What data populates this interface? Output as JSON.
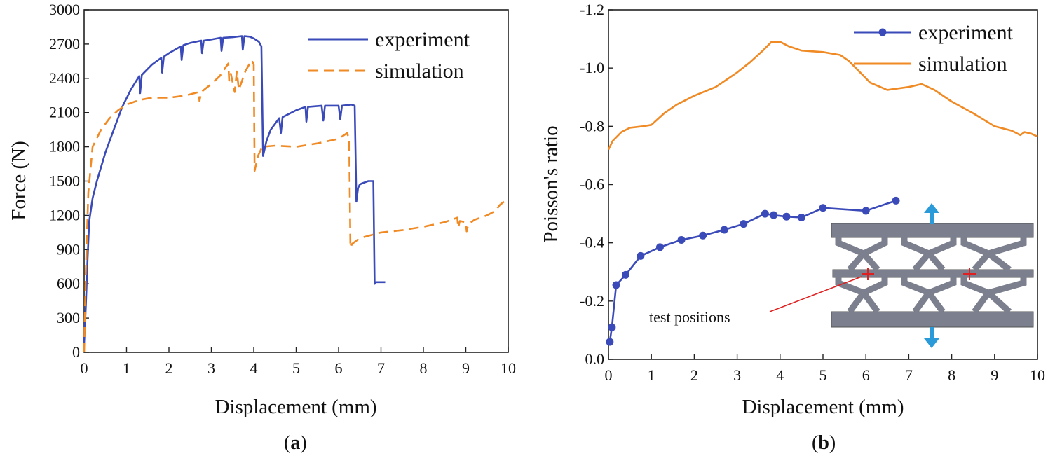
{
  "colors": {
    "experiment": "#3a4ab8",
    "simulation": "#f08a24",
    "structure": "#7c7f8e",
    "arrow": "#2a9ad8",
    "marker": "#e02020"
  },
  "chart_data": [
    {
      "type": "line",
      "panel_label": "a",
      "xlabel": "Displacement (mm)",
      "ylabel": "Force (N)",
      "xlim": [
        0,
        10
      ],
      "ylim": [
        0,
        3000
      ],
      "xticks": [
        "0",
        "1",
        "2",
        "3",
        "4",
        "5",
        "6",
        "7",
        "8",
        "9",
        "10"
      ],
      "yticks": [
        "0",
        "300",
        "600",
        "900",
        "1200",
        "1500",
        "1800",
        "2100",
        "2400",
        "2700",
        "3000"
      ],
      "legend_position": "top-right",
      "series": [
        {
          "name": "experiment",
          "style": "solid",
          "color_key": "experiment",
          "x": [
            0,
            0.04,
            0.08,
            0.12,
            0.2,
            0.3,
            0.5,
            0.7,
            0.9,
            1.1,
            1.3,
            1.32,
            1.36,
            1.6,
            1.82,
            1.84,
            1.88,
            2.0,
            2.28,
            2.3,
            2.34,
            2.5,
            2.76,
            2.78,
            2.82,
            3.0,
            3.22,
            3.24,
            3.28,
            3.5,
            3.72,
            3.74,
            3.78,
            3.9,
            4.0,
            4.08,
            4.12,
            4.18,
            4.22,
            4.3,
            4.4,
            4.6,
            4.64,
            4.68,
            5.0,
            5.22,
            5.24,
            5.28,
            5.6,
            5.64,
            5.68,
            6.0,
            6.04,
            6.08,
            6.3,
            6.38,
            6.42,
            6.46,
            6.5,
            6.55,
            6.7,
            6.82,
            6.85,
            6.88,
            6.95,
            7.1
          ],
          "y": [
            80,
            400,
            800,
            1150,
            1350,
            1500,
            1750,
            1950,
            2150,
            2300,
            2420,
            2270,
            2430,
            2520,
            2580,
            2450,
            2590,
            2620,
            2680,
            2560,
            2690,
            2710,
            2730,
            2620,
            2730,
            2740,
            2755,
            2640,
            2755,
            2760,
            2770,
            2650,
            2770,
            2765,
            2750,
            2730,
            2720,
            2680,
            1720,
            1850,
            1950,
            2050,
            1920,
            2060,
            2120,
            2150,
            2020,
            2150,
            2160,
            2030,
            2160,
            2160,
            2040,
            2160,
            2170,
            2160,
            1320,
            1440,
            1470,
            1480,
            1500,
            1500,
            600,
            615,
            615,
            615
          ]
        },
        {
          "name": "simulation",
          "style": "dashed",
          "color_key": "simulation",
          "x": [
            0,
            0.04,
            0.1,
            0.2,
            0.4,
            0.6,
            0.8,
            1.0,
            1.3,
            1.6,
            2.0,
            2.4,
            2.7,
            2.72,
            2.76,
            3.0,
            3.2,
            3.4,
            3.42,
            3.46,
            3.55,
            3.6,
            3.65,
            3.8,
            3.95,
            4.0,
            4.02,
            4.1,
            4.2,
            4.5,
            5.0,
            5.5,
            6.0,
            6.2,
            6.25,
            6.28,
            6.32,
            6.5,
            7.0,
            7.5,
            8.0,
            8.5,
            8.8,
            8.82,
            8.86,
            9.0,
            9.02,
            9.06,
            9.2,
            9.5,
            9.7,
            9.8,
            9.9
          ],
          "y": [
            0,
            700,
            1400,
            1800,
            1950,
            2050,
            2120,
            2170,
            2210,
            2230,
            2230,
            2250,
            2280,
            2200,
            2280,
            2350,
            2420,
            2530,
            2380,
            2440,
            2280,
            2460,
            2300,
            2460,
            2560,
            2520,
            1590,
            1720,
            1800,
            1810,
            1800,
            1830,
            1870,
            1920,
            1870,
            920,
            950,
            1000,
            1050,
            1070,
            1100,
            1140,
            1180,
            1090,
            1150,
            1140,
            1060,
            1120,
            1160,
            1200,
            1240,
            1290,
            1320
          ]
        }
      ]
    },
    {
      "type": "line",
      "panel_label": "b",
      "xlabel": "Displacement (mm)",
      "ylabel": "Poisson's ratio",
      "xlim": [
        0,
        10
      ],
      "ylim": [
        0.0,
        -1.2
      ],
      "xticks": [
        "0",
        "1",
        "2",
        "3",
        "4",
        "5",
        "6",
        "7",
        "8",
        "9",
        "10"
      ],
      "yticks": [
        "0.0",
        "-0.2",
        "-0.4",
        "-0.6",
        "-0.8",
        "-1.0",
        "-1.2"
      ],
      "legend_position": "top-right",
      "series": [
        {
          "name": "experiment",
          "style": "solid-marker",
          "color_key": "experiment",
          "x": [
            0.03,
            0.08,
            0.18,
            0.4,
            0.75,
            1.2,
            1.7,
            2.2,
            2.7,
            3.15,
            3.65,
            3.85,
            4.15,
            4.5,
            5.0,
            6.0,
            6.7
          ],
          "y": [
            -0.06,
            -0.11,
            -0.255,
            -0.29,
            -0.355,
            -0.385,
            -0.41,
            -0.425,
            -0.445,
            -0.465,
            -0.5,
            -0.495,
            -0.49,
            -0.487,
            -0.52,
            -0.51,
            -0.545
          ]
        },
        {
          "name": "simulation",
          "style": "solid",
          "color_key": "simulation",
          "x": [
            0,
            0.1,
            0.3,
            0.5,
            0.8,
            1.0,
            1.3,
            1.6,
            2.0,
            2.5,
            3.0,
            3.3,
            3.6,
            3.8,
            4.0,
            4.2,
            4.5,
            5.0,
            5.4,
            5.6,
            6.0,
            6.1,
            6.5,
            7.0,
            7.3,
            7.6,
            8.0,
            8.5,
            9.0,
            9.4,
            9.6,
            9.7,
            9.85,
            10.0
          ],
          "y": [
            -0.72,
            -0.75,
            -0.78,
            -0.795,
            -0.8,
            -0.805,
            -0.845,
            -0.875,
            -0.905,
            -0.935,
            -0.985,
            -1.02,
            -1.06,
            -1.09,
            -1.09,
            -1.075,
            -1.06,
            -1.055,
            -1.045,
            -1.025,
            -0.965,
            -0.95,
            -0.925,
            -0.935,
            -0.945,
            -0.925,
            -0.885,
            -0.845,
            -0.8,
            -0.785,
            -0.77,
            -0.78,
            -0.775,
            -0.765
          ]
        }
      ],
      "annotations": [
        {
          "text": "test positions"
        }
      ]
    }
  ]
}
